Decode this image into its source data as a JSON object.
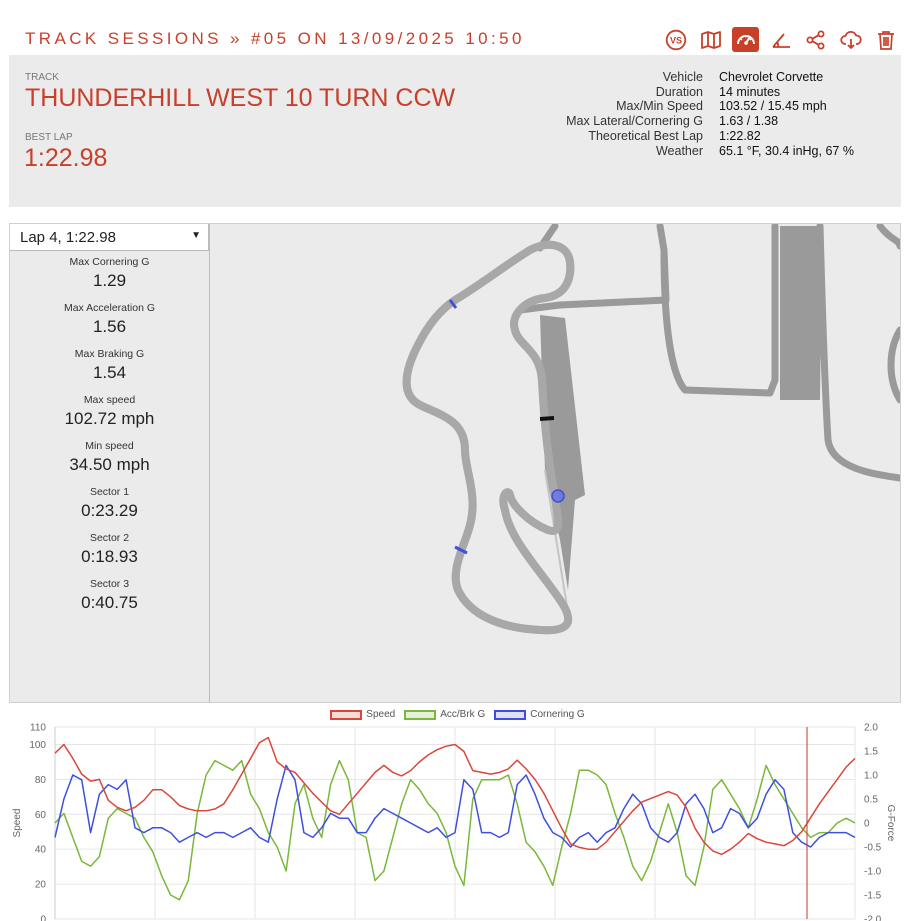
{
  "header": {
    "title": "TRACK SESSIONS » #05 ON 13/09/2025 10:50",
    "toolbar": [
      {
        "icon": "vs-icon",
        "label": "VS"
      },
      {
        "icon": "map-icon",
        "label": ""
      },
      {
        "icon": "speedometer-icon",
        "label": ""
      },
      {
        "icon": "angle-icon",
        "label": ""
      },
      {
        "icon": "share-icon",
        "label": ""
      },
      {
        "icon": "cloud-download-icon",
        "label": ""
      },
      {
        "icon": "trash-icon",
        "label": ""
      }
    ],
    "accent_color": "#c8402a"
  },
  "summary": {
    "track_caption": "TRACK",
    "track_name": "THUNDERHILL WEST 10 TURN CCW",
    "best_lap_caption": "BEST LAP",
    "best_lap": "1:22.98",
    "details": [
      {
        "label": "Vehicle",
        "value": "Chevrolet Corvette"
      },
      {
        "label": "Duration",
        "value": "14 minutes"
      },
      {
        "label": "Max/Min Speed",
        "value": "103.52 / 15.45 mph"
      },
      {
        "label": "Max Lateral/Cornering G",
        "value": "1.63 / 1.38"
      },
      {
        "label": "Theoretical Best Lap",
        "value": "1:22.82"
      },
      {
        "label": "Weather",
        "value": "65.1 °F, 30.4 inHg, 67 %"
      }
    ]
  },
  "lap_panel": {
    "selected_lap": "Lap 4, 1:22.98",
    "stats": [
      {
        "label": "Max Cornering G",
        "value": "1.29"
      },
      {
        "label": "Max Acceleration G",
        "value": "1.56"
      },
      {
        "label": "Max Braking G",
        "value": "1.54"
      },
      {
        "label": "Max speed",
        "value": "102.72 mph"
      },
      {
        "label": "Min speed",
        "value": "34.50 mph"
      },
      {
        "label": "Sector 1",
        "value": "0:23.29"
      },
      {
        "label": "Sector 2",
        "value": "0:18.93"
      },
      {
        "label": "Sector 3",
        "value": "0:40.75"
      }
    ]
  },
  "chart_data": {
    "type": "line",
    "legend": [
      {
        "name": "Speed",
        "color": "#d9473a"
      },
      {
        "name": "Acc/Brk G",
        "color": "#79b83a"
      },
      {
        "name": "Cornering G",
        "color": "#3e4fe0"
      }
    ],
    "ylabel": "Speed",
    "y2label": "G-Force",
    "y_ticks": [
      0,
      20,
      40,
      60,
      80,
      100,
      110
    ],
    "y2_ticks": [
      "2.0",
      "1.5",
      "1.0",
      "0.5",
      "0",
      "-0.5",
      "-1.0",
      "-1.5",
      "-2.0"
    ],
    "ylim": [
      0,
      110
    ],
    "y2lim": [
      -2,
      2
    ],
    "series": [
      {
        "name": "Speed",
        "values": [
          95,
          100,
          92,
          83,
          79,
          80,
          68,
          64,
          62,
          64,
          68,
          74,
          74,
          70,
          65,
          63,
          62,
          62,
          63,
          66,
          74,
          83,
          92,
          101,
          104,
          90,
          86,
          84,
          78,
          72,
          67,
          62,
          60,
          66,
          72,
          78,
          84,
          88,
          84,
          82,
          85,
          90,
          94,
          97,
          99,
          100,
          96,
          85,
          84,
          83,
          84,
          86,
          91,
          86,
          80,
          72,
          62,
          52,
          43,
          41,
          40,
          40,
          44,
          50,
          56,
          62,
          67,
          69,
          71,
          73,
          71,
          64,
          52,
          44,
          39,
          37,
          40,
          44,
          49,
          46,
          44,
          43,
          42,
          45,
          50,
          58,
          66,
          73,
          80,
          87,
          92
        ]
      },
      {
        "name": "Acc/Brk G",
        "values": [
          0,
          0.2,
          -0.3,
          -0.8,
          -0.9,
          -0.7,
          0.1,
          0.3,
          0.2,
          0.1,
          -0.3,
          -0.6,
          -1.1,
          -1.5,
          -1.6,
          -1.2,
          0.2,
          1.0,
          1.3,
          1.2,
          1.1,
          1.3,
          0.6,
          0.3,
          -0.2,
          -0.5,
          -1.0,
          0.4,
          0.8,
          0.1,
          -0.3,
          0.8,
          1.3,
          0.9,
          -0.2,
          -0.3,
          -1.2,
          -1.0,
          -0.3,
          0.4,
          0.9,
          0.7,
          0.4,
          0.2,
          -0.2,
          -0.9,
          -1.3,
          0.5,
          0.9,
          0.9,
          0.9,
          1.0,
          0.4,
          -0.4,
          -0.6,
          -0.9,
          -1.3,
          -0.5,
          0.2,
          1.1,
          1.1,
          1.0,
          0.8,
          0.2,
          -0.3,
          -0.9,
          -1.2,
          -0.8,
          -0.2,
          0.4,
          -0.2,
          -1.1,
          -1.3,
          -0.5,
          0.7,
          0.9,
          0.6,
          0.3,
          -0.1,
          0.5,
          1.2,
          0.8,
          0.5,
          0.2,
          -0.1,
          -0.3,
          -0.2,
          -0.2,
          0,
          0.1,
          0
        ]
      },
      {
        "name": "Cornering G",
        "values": [
          -0.3,
          0.5,
          1.0,
          0.9,
          -0.2,
          0.6,
          0.8,
          0.7,
          0.9,
          -0.1,
          -0.2,
          -0.1,
          -0.1,
          -0.2,
          -0.4,
          -0.3,
          -0.2,
          -0.3,
          -0.2,
          -0.2,
          -0.3,
          -0.2,
          -0.1,
          -0.3,
          -0.4,
          0.5,
          1.2,
          0.9,
          -0.2,
          -0.3,
          -0.1,
          0.2,
          0.1,
          0.1,
          -0.2,
          -0.2,
          0.1,
          0.3,
          0.2,
          0.1,
          0,
          -0.1,
          -0.2,
          -0.1,
          -0.3,
          -0.2,
          0.9,
          0.7,
          -0.2,
          -0.2,
          -0.3,
          -0.2,
          0.8,
          1.0,
          0.6,
          0.1,
          -0.2,
          -0.3,
          -0.5,
          -0.3,
          -0.2,
          -0.4,
          -0.2,
          -0.1,
          0.3,
          0.6,
          0.4,
          -0.1,
          -0.3,
          -0.4,
          -0.2,
          0.4,
          0.6,
          0.3,
          -0.2,
          -0.1,
          0.3,
          0.2,
          -0.1,
          0.1,
          0.6,
          0.9,
          0.7,
          -0.2,
          -0.4,
          -0.5,
          -0.3,
          -0.2,
          -0.2,
          -0.2,
          -0.3
        ]
      }
    ],
    "cursor_fraction": 0.94
  }
}
